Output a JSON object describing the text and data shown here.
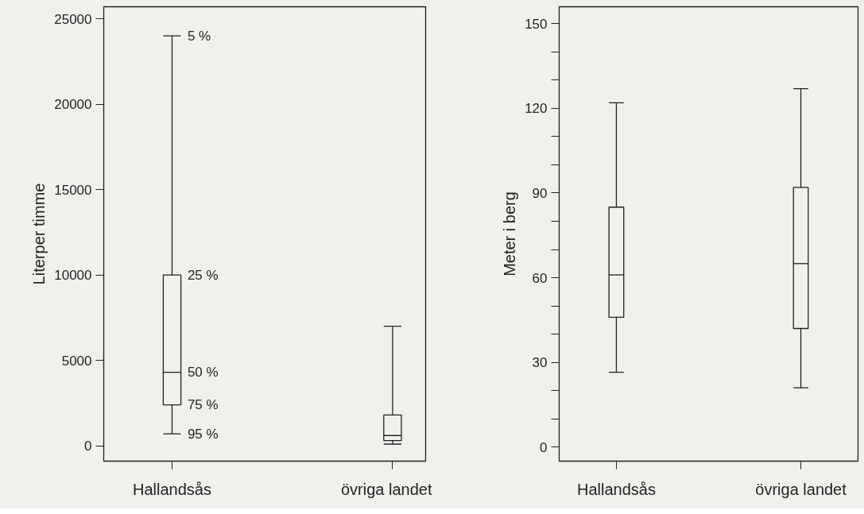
{
  "chart_data": [
    {
      "type": "box",
      "ylabel": "Literper timme",
      "categories": [
        "Hallandsås",
        "övriga landet"
      ],
      "boxes": [
        {
          "low": 700,
          "q1": 2400,
          "median": 4300,
          "q3": 10000,
          "high": 24000
        },
        {
          "low": 100,
          "q1": 300,
          "median": 600,
          "q3": 1800,
          "high": 7000
        }
      ],
      "ylim": [
        -900,
        25700
      ],
      "yticks": [
        0,
        5000,
        10000,
        15000,
        20000,
        25000
      ],
      "color": "#222222",
      "annotations": [
        {
          "text": "5 %",
          "x": "Hallandsås",
          "y": 24000
        },
        {
          "text": "25 %",
          "x": "Hallandsås",
          "y": 10000
        },
        {
          "text": "50 %",
          "x": "Hallandsås",
          "y": 4300
        },
        {
          "text": "75 %",
          "x": "Hallandsås",
          "y": 2400
        },
        {
          "text": "95 %",
          "x": "Hallandsås",
          "y": 700
        }
      ]
    },
    {
      "type": "box",
      "ylabel": "Meter i berg",
      "categories": [
        "Hallandsås",
        "övriga landet"
      ],
      "boxes": [
        {
          "low": 26.5,
          "q1": 46,
          "median": 61,
          "q3": 85,
          "high": 122
        },
        {
          "low": 21,
          "q1": 42,
          "median": 65,
          "q3": 92,
          "high": 127
        }
      ],
      "ylim": [
        -5,
        156
      ],
      "color": "#222222",
      "yticks": [
        0,
        {
          "value": 10,
          "label": null
        },
        {
          "value": 20,
          "label": null
        },
        30,
        {
          "value": 40,
          "label": null
        },
        {
          "value": 50,
          "label": null
        },
        60,
        {
          "value": 70,
          "label": null
        },
        {
          "value": 80,
          "label": null
        },
        90,
        {
          "value": 100,
          "label": null
        },
        {
          "value": 110,
          "label": null
        },
        120,
        {
          "value": 130,
          "label": null
        },
        {
          "value": 140,
          "label": null
        },
        150
      ]
    }
  ]
}
